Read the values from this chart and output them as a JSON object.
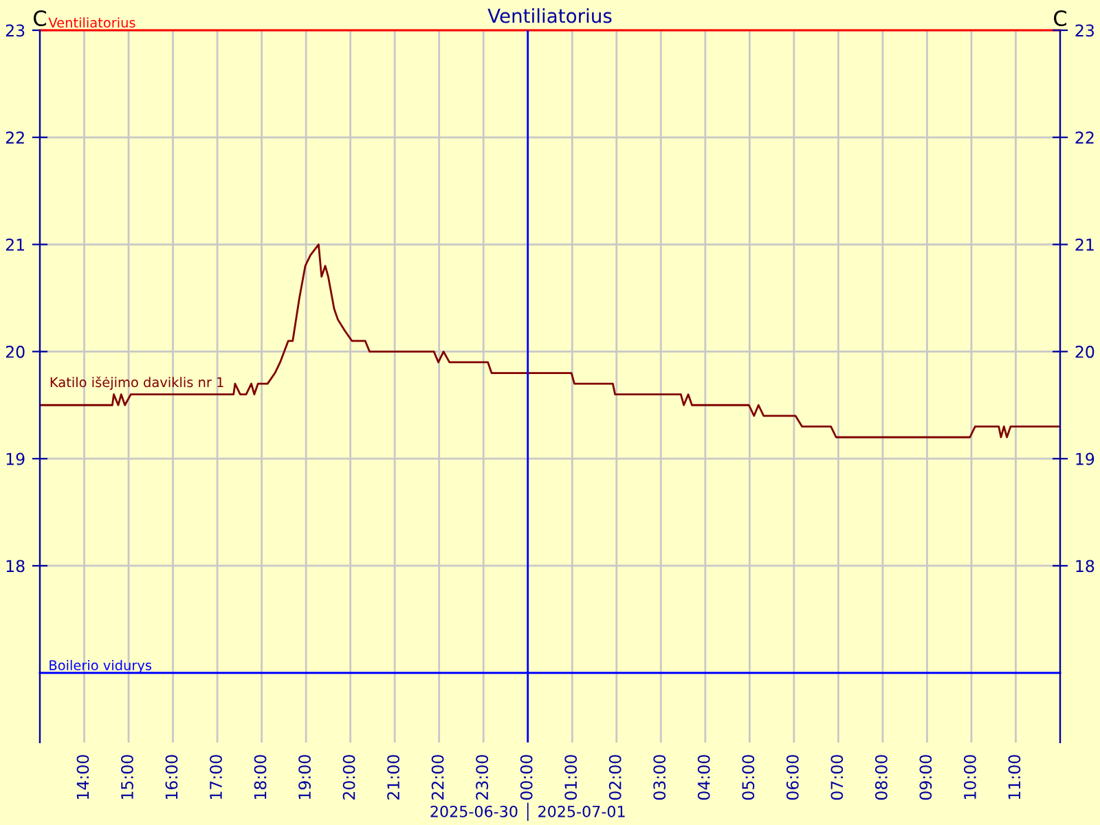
{
  "chart_data": {
    "type": "line",
    "title": "Ventiliatorius",
    "ylabel": "C",
    "y2label": "C",
    "xlim": [
      "2025-06-30T13:00",
      "2025-07-01T12:00"
    ],
    "xticks": [
      {
        "value": "2025-06-30T14:00",
        "label": "14:00"
      },
      {
        "value": "2025-06-30T15:00",
        "label": "15:00"
      },
      {
        "value": "2025-06-30T16:00",
        "label": "16:00"
      },
      {
        "value": "2025-06-30T17:00",
        "label": "17:00"
      },
      {
        "value": "2025-06-30T18:00",
        "label": "18:00"
      },
      {
        "value": "2025-06-30T19:00",
        "label": "19:00"
      },
      {
        "value": "2025-06-30T20:00",
        "label": "20:00"
      },
      {
        "value": "2025-06-30T21:00",
        "label": "21:00"
      },
      {
        "value": "2025-06-30T22:00",
        "label": "22:00"
      },
      {
        "value": "2025-06-30T23:00",
        "label": "23:00"
      },
      {
        "value": "2025-07-01T00:00",
        "label": "00:00"
      },
      {
        "value": "2025-07-01T01:00",
        "label": "01:00"
      },
      {
        "value": "2025-07-01T02:00",
        "label": "02:00"
      },
      {
        "value": "2025-07-01T03:00",
        "label": "03:00"
      },
      {
        "value": "2025-07-01T04:00",
        "label": "04:00"
      },
      {
        "value": "2025-07-01T05:00",
        "label": "05:00"
      },
      {
        "value": "2025-07-01T06:00",
        "label": "06:00"
      },
      {
        "value": "2025-07-01T07:00",
        "label": "07:00"
      },
      {
        "value": "2025-07-01T08:00",
        "label": "08:00"
      },
      {
        "value": "2025-07-01T09:00",
        "label": "09:00"
      },
      {
        "value": "2025-07-01T10:00",
        "label": "10:00"
      },
      {
        "value": "2025-07-01T11:00",
        "label": "11:00"
      }
    ],
    "ylim": [
      16.35,
      23
    ],
    "yticks": [
      18,
      19,
      20,
      21,
      22,
      23
    ],
    "y2lim": [
      16.35,
      23
    ],
    "y2ticks": [
      18,
      19,
      20,
      21,
      22,
      23
    ],
    "grid": true,
    "series": [
      {
        "name": "Katilo išėjimo daviklis nr 1",
        "color": "#800000",
        "x": [
          "2025-06-30T13:00",
          "2025-06-30T14:38",
          "2025-06-30T14:40",
          "2025-06-30T14:46",
          "2025-06-30T14:50",
          "2025-06-30T14:55",
          "2025-06-30T15:03",
          "2025-06-30T17:22",
          "2025-06-30T17:24",
          "2025-06-30T17:31",
          "2025-06-30T17:39",
          "2025-06-30T17:46",
          "2025-06-30T17:50",
          "2025-06-30T17:55",
          "2025-06-30T18:08",
          "2025-06-30T18:18",
          "2025-06-30T18:25",
          "2025-06-30T18:36",
          "2025-06-30T18:42",
          "2025-06-30T18:51",
          "2025-06-30T18:59",
          "2025-06-30T19:06",
          "2025-06-30T19:17",
          "2025-06-30T19:21",
          "2025-06-30T19:26",
          "2025-06-30T19:30",
          "2025-06-30T19:38",
          "2025-06-30T19:43",
          "2025-06-30T19:52",
          "2025-06-30T20:02",
          "2025-06-30T20:20",
          "2025-06-30T20:26",
          "2025-06-30T21:53",
          "2025-06-30T21:59",
          "2025-06-30T22:06",
          "2025-06-30T22:14",
          "2025-06-30T23:06",
          "2025-06-30T23:11",
          "2025-07-01T00:59",
          "2025-07-01T01:03",
          "2025-07-01T01:55",
          "2025-07-01T01:58",
          "2025-07-01T03:27",
          "2025-07-01T03:31",
          "2025-07-01T03:37",
          "2025-07-01T03:42",
          "2025-07-01T04:59",
          "2025-07-01T05:06",
          "2025-07-01T05:12",
          "2025-07-01T05:19",
          "2025-07-01T06:02",
          "2025-07-01T06:11",
          "2025-07-01T06:50",
          "2025-07-01T06:57",
          "2025-07-01T09:58",
          "2025-07-01T10:05",
          "2025-07-01T10:37",
          "2025-07-01T10:40",
          "2025-07-01T10:44",
          "2025-07-01T10:48",
          "2025-07-01T10:53",
          "2025-07-01T11:58"
        ],
        "values": [
          19.5,
          19.5,
          19.6,
          19.5,
          19.6,
          19.5,
          19.6,
          19.6,
          19.7,
          19.6,
          19.6,
          19.7,
          19.6,
          19.7,
          19.7,
          19.8,
          19.9,
          20.1,
          20.1,
          20.5,
          20.8,
          20.9,
          21.0,
          20.7,
          20.8,
          20.7,
          20.4,
          20.3,
          20.2,
          20.1,
          20.1,
          20.0,
          20.0,
          19.9,
          20.0,
          19.9,
          19.9,
          19.8,
          19.8,
          19.7,
          19.7,
          19.6,
          19.6,
          19.5,
          19.6,
          19.5,
          19.5,
          19.4,
          19.5,
          19.4,
          19.4,
          19.3,
          19.3,
          19.2,
          19.2,
          19.3,
          19.3,
          19.2,
          19.3,
          19.2,
          19.3,
          19.3
        ]
      }
    ],
    "ref_lines": [
      {
        "axis": "y",
        "value": 23,
        "label": "Ventiliatorius",
        "color": "#ff0000"
      },
      {
        "axis": "y",
        "value": 17,
        "label": "Boilerio vidurys",
        "color": "#0000ff"
      },
      {
        "axis": "x",
        "value": "2025-07-01T00:00",
        "color": "#0000ff"
      }
    ],
    "annotations": [
      "2025-06-30 │ 2025-07-01"
    ]
  }
}
